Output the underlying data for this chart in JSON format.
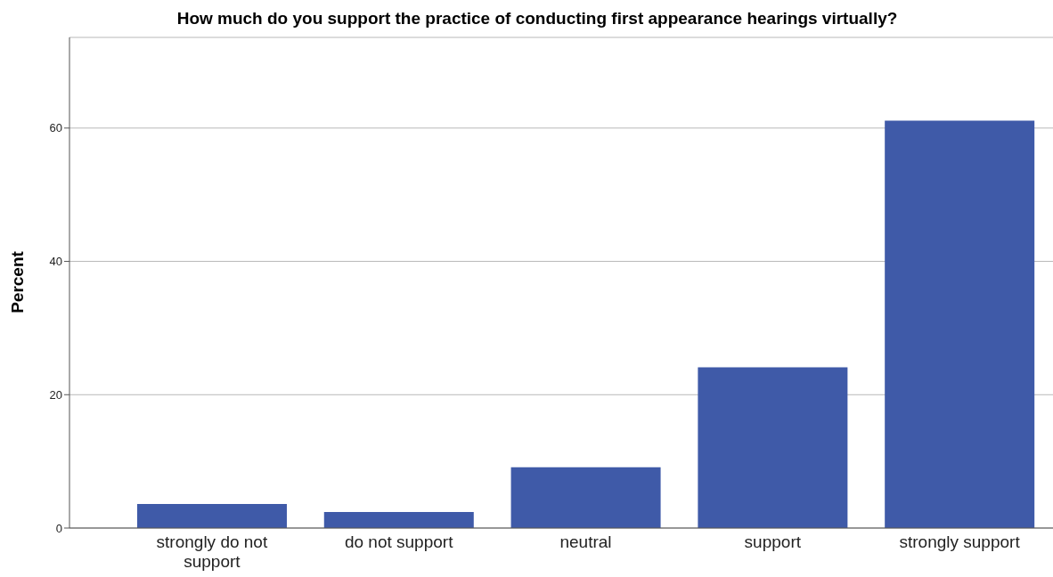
{
  "chart_data": {
    "type": "bar",
    "title": "How much do you support the practice of conducting first appearance hearings virtually?",
    "ylabel": "Percent",
    "categories": [
      "strongly do not support",
      "do not support",
      "neutral",
      "support",
      "strongly support"
    ],
    "values": [
      3.6,
      2.4,
      9.1,
      24.1,
      61.1
    ],
    "color": "#3f5aa8",
    "ylim": [
      0,
      73.6
    ],
    "yticks": [
      0,
      20,
      40,
      60
    ],
    "grid": "y",
    "legend": false
  }
}
